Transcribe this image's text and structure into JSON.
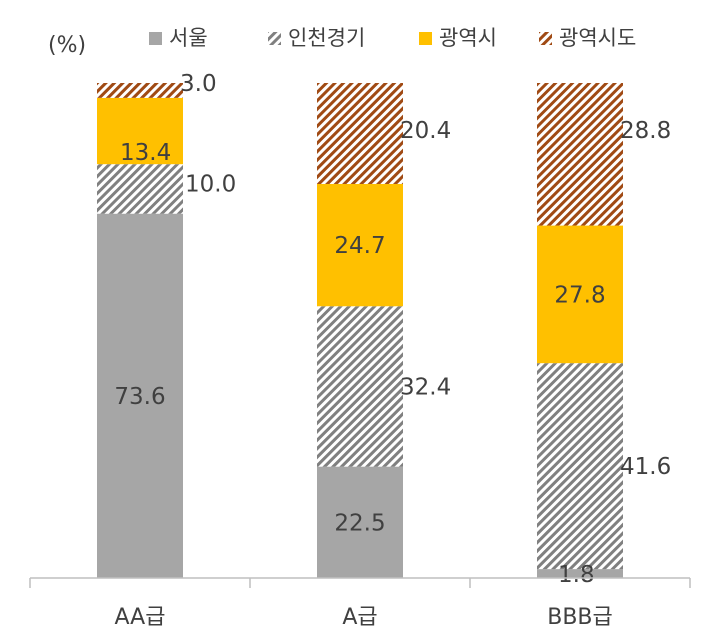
{
  "chart_data": {
    "type": "bar",
    "stacked": true,
    "unit_label": "(%)",
    "categories": [
      "AA급",
      "A급",
      "BBB급"
    ],
    "series": [
      {
        "name": "서울",
        "values": [
          73.6,
          22.5,
          1.8
        ],
        "color": "#a6a6a6",
        "fill": "solid"
      },
      {
        "name": "인천경기",
        "values": [
          10.0,
          32.4,
          41.6
        ],
        "color": "#808080",
        "fill": "hatch"
      },
      {
        "name": "광역시",
        "values": [
          13.4,
          24.7,
          27.8
        ],
        "color": "#ffc000",
        "fill": "solid"
      },
      {
        "name": "광역시도",
        "values": [
          3.0,
          20.4,
          28.8
        ],
        "color": "#a04a14",
        "fill": "hatch"
      }
    ],
    "ylim": [
      0,
      100
    ],
    "grid": false,
    "legend_position": "top"
  }
}
